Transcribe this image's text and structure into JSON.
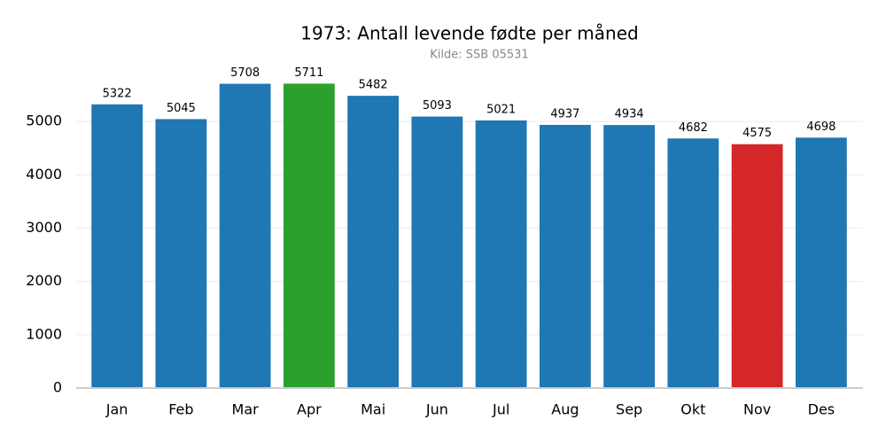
{
  "chart_data": {
    "type": "bar",
    "title": "1973: Antall levende fødte per måned",
    "subtitle": "Kilde: SSB 05531",
    "categories": [
      "Jan",
      "Feb",
      "Mar",
      "Apr",
      "Mai",
      "Jun",
      "Jul",
      "Aug",
      "Sep",
      "Okt",
      "Nov",
      "Des"
    ],
    "values": [
      5322,
      5045,
      5708,
      5711,
      5482,
      5093,
      5021,
      4937,
      4934,
      4682,
      4575,
      4698
    ],
    "colors": [
      "#1f77b4",
      "#1f77b4",
      "#1f77b4",
      "#2ca02c",
      "#1f77b4",
      "#1f77b4",
      "#1f77b4",
      "#1f77b4",
      "#1f77b4",
      "#1f77b4",
      "#d62728",
      "#1f77b4"
    ],
    "ylim": [
      0,
      6000
    ],
    "yticks": [
      0,
      1000,
      2000,
      3000,
      4000,
      5000
    ],
    "grid": true
  }
}
